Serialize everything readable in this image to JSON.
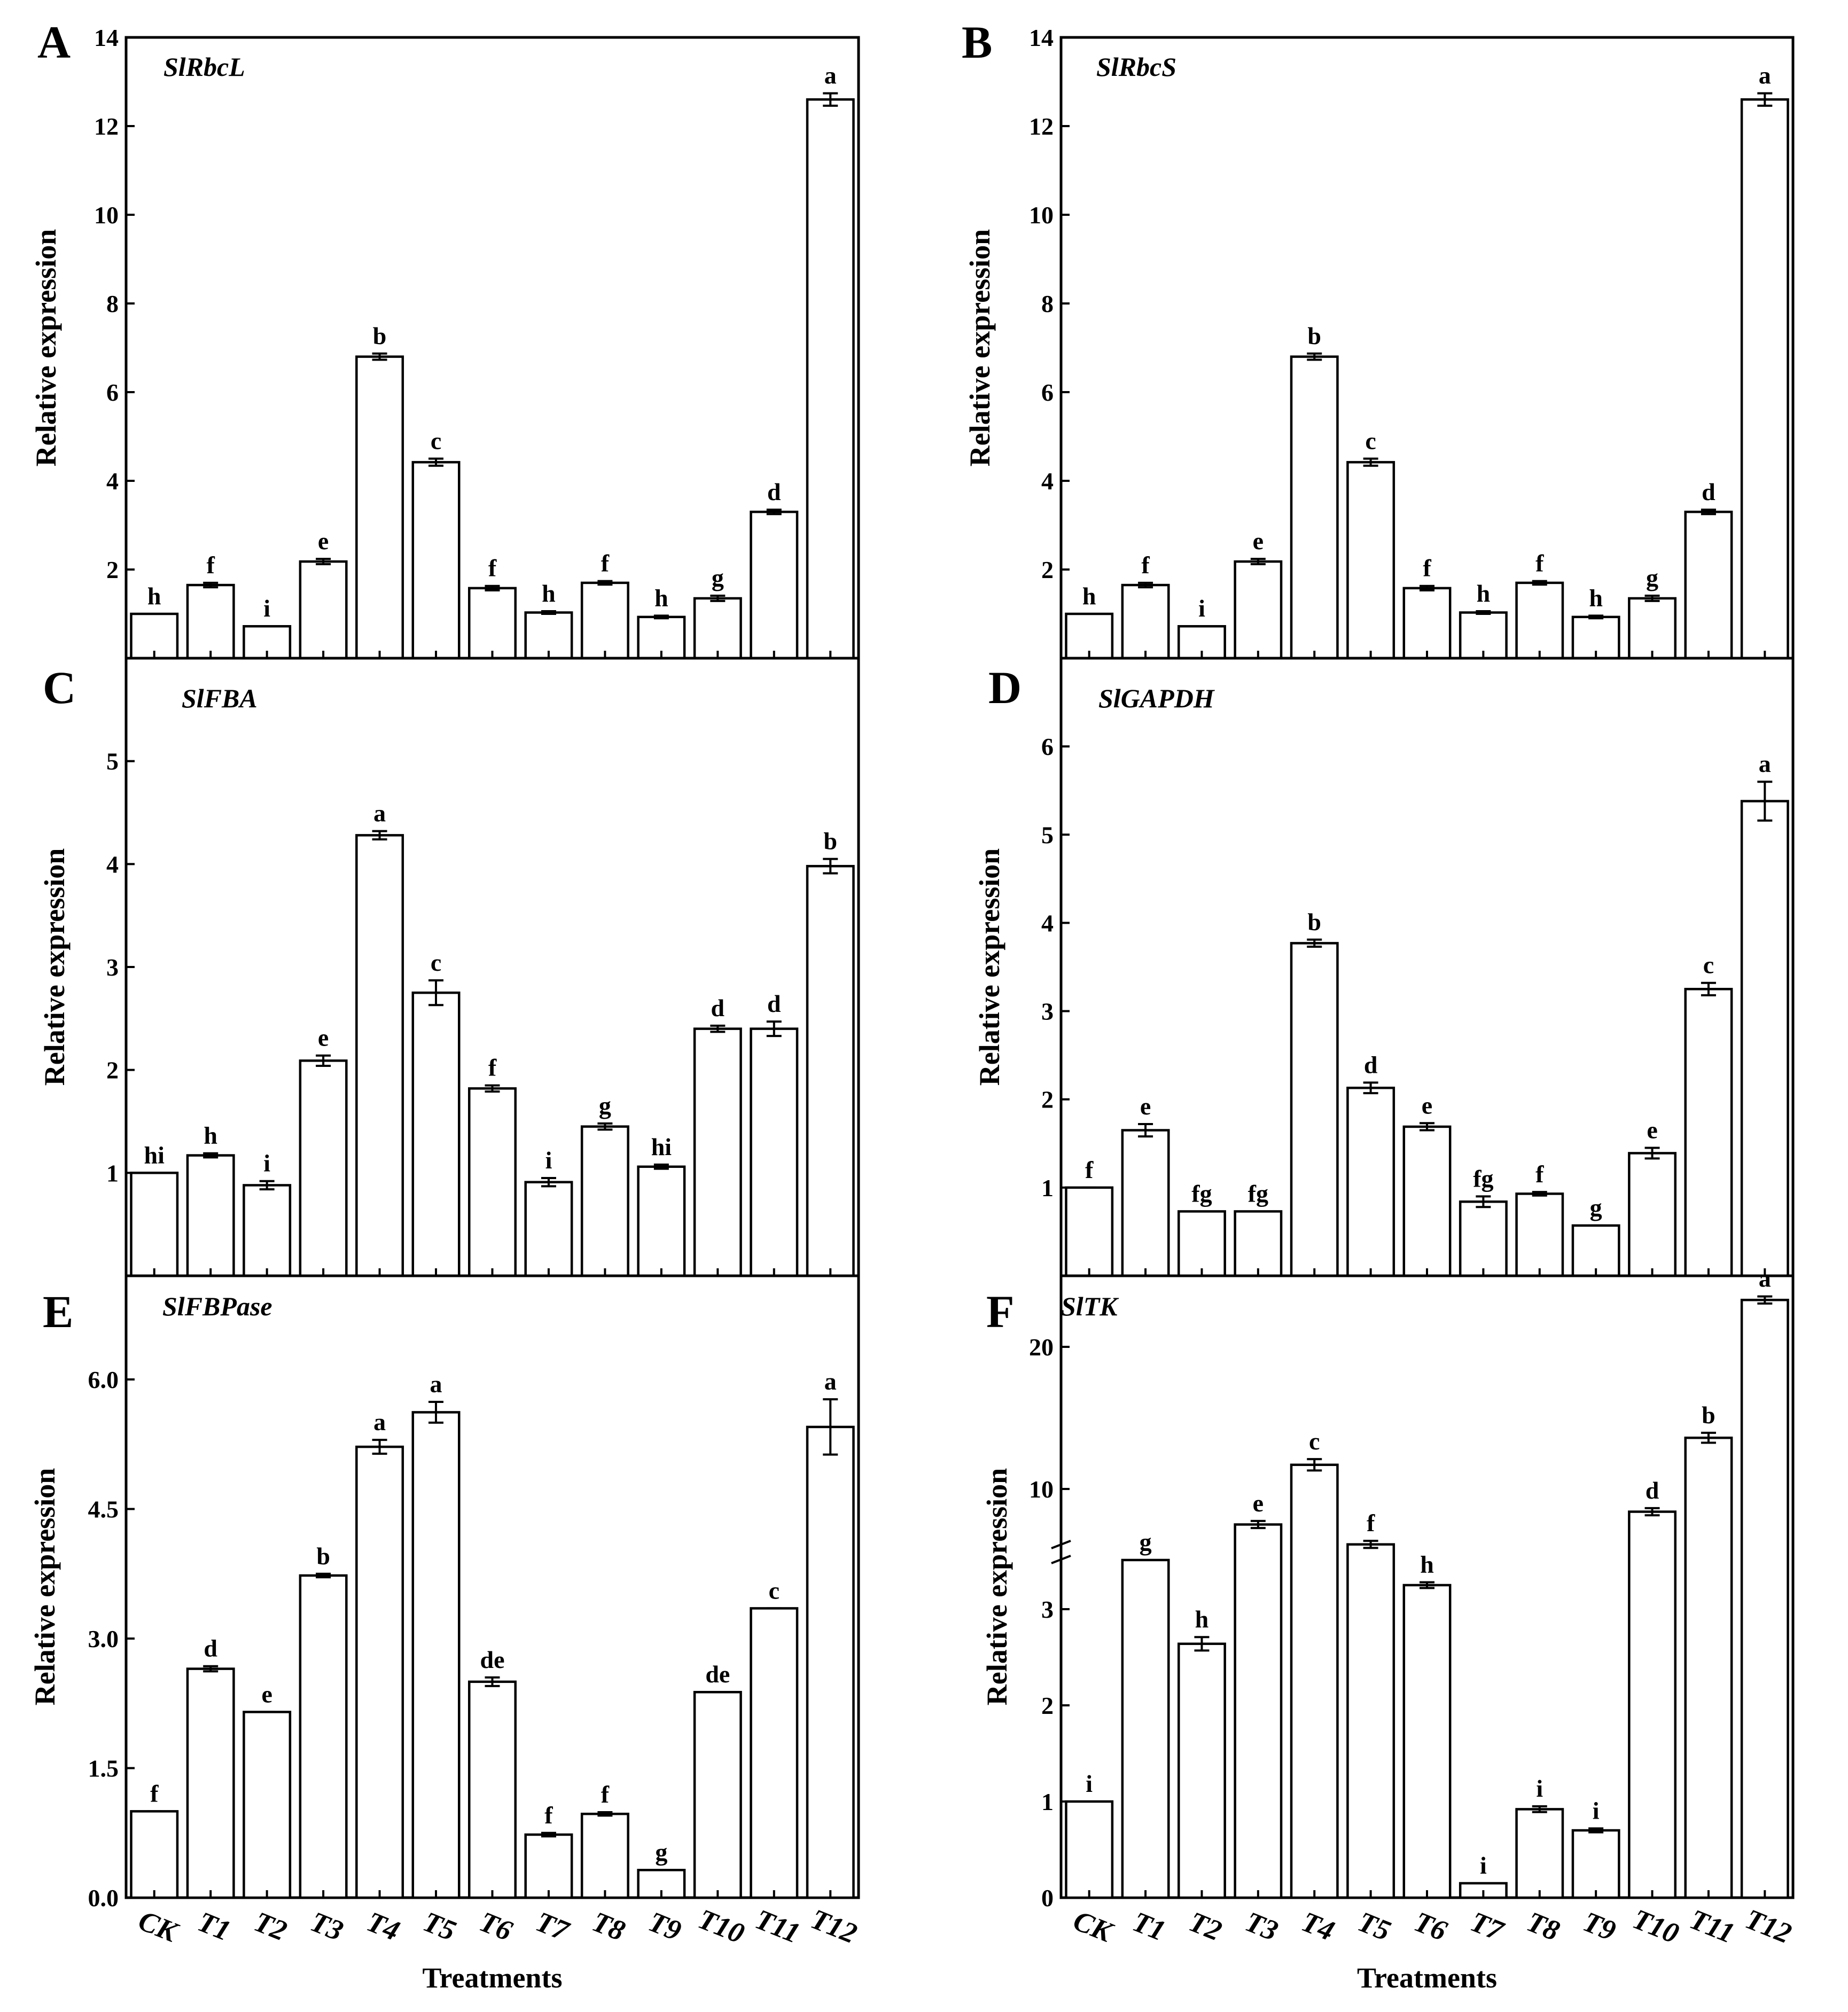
{
  "chart_data": [
    {
      "type": "bar",
      "panel_letter": "A",
      "title": "SlRbcL",
      "ylabel": "Relative expression",
      "xlabel": "",
      "ylim": [
        0,
        14
      ],
      "yticks": [
        "2",
        "4",
        "6",
        "8",
        "10",
        "12",
        "14"
      ],
      "categories": [
        "CK",
        "T1",
        "T2",
        "T3",
        "T4",
        "T5",
        "T6",
        "T7",
        "T8",
        "T9",
        "T10",
        "T11",
        "T12"
      ],
      "values": [
        1.0,
        1.65,
        0.72,
        2.18,
        6.8,
        4.42,
        1.58,
        1.03,
        1.7,
        0.93,
        1.35,
        3.3,
        12.6
      ],
      "errors": [
        0.0,
        0.05,
        0.0,
        0.06,
        0.07,
        0.08,
        0.05,
        0.03,
        0.04,
        0.03,
        0.06,
        0.05,
        0.14
      ],
      "labels": [
        "h",
        "f",
        "i",
        "e",
        "b",
        "c",
        "f",
        "h",
        "f",
        "h",
        "g",
        "d",
        "a"
      ]
    },
    {
      "type": "bar",
      "panel_letter": "B",
      "title": "SlRbcS",
      "ylabel": "Relative expression",
      "xlabel": "",
      "ylim": [
        0,
        14
      ],
      "yticks": [
        "2",
        "4",
        "6",
        "8",
        "10",
        "12",
        "14"
      ],
      "categories": [
        "CK",
        "T1",
        "T2",
        "T3",
        "T4",
        "T5",
        "T6",
        "T7",
        "T8",
        "T9",
        "T10",
        "T11",
        "T12"
      ],
      "values": [
        1.0,
        1.65,
        0.72,
        2.18,
        6.8,
        4.42,
        1.58,
        1.03,
        1.7,
        0.93,
        1.35,
        3.3,
        12.6
      ],
      "errors": [
        0.0,
        0.05,
        0.0,
        0.06,
        0.07,
        0.08,
        0.05,
        0.03,
        0.04,
        0.03,
        0.06,
        0.05,
        0.14
      ],
      "labels": [
        "h",
        "f",
        "i",
        "e",
        "b",
        "c",
        "f",
        "h",
        "f",
        "h",
        "g",
        "d",
        "a"
      ]
    },
    {
      "type": "bar",
      "panel_letter": "C",
      "title": "SlFBA",
      "ylabel": "Relative expression",
      "xlabel": "",
      "ylim": [
        0,
        6
      ],
      "yticks": [
        "1",
        "2",
        "3",
        "4",
        "5"
      ],
      "categories": [
        "CK",
        "T1",
        "T2",
        "T3",
        "T4",
        "T5",
        "T6",
        "T7",
        "T8",
        "T9",
        "T10",
        "T11",
        "T12"
      ],
      "values": [
        1.0,
        1.17,
        0.88,
        2.09,
        4.28,
        2.75,
        1.82,
        0.91,
        1.45,
        1.06,
        2.4,
        2.4,
        3.98
      ],
      "errors": [
        0.0,
        0.02,
        0.04,
        0.05,
        0.04,
        0.12,
        0.03,
        0.04,
        0.03,
        0.02,
        0.03,
        0.07,
        0.07
      ],
      "labels": [
        "hi",
        "h",
        "i",
        "e",
        "a",
        "c",
        "f",
        "i",
        "g",
        "hi",
        "d",
        "d",
        "b"
      ]
    },
    {
      "type": "bar",
      "panel_letter": "D",
      "title": "SlGAPDH",
      "ylabel": "Relative expression",
      "xlabel": "",
      "ylim": [
        0,
        7
      ],
      "yticks": [
        "1",
        "2",
        "3",
        "4",
        "5",
        "6"
      ],
      "categories": [
        "CK",
        "T1",
        "T2",
        "T3",
        "T4",
        "T5",
        "T6",
        "T7",
        "T8",
        "T9",
        "T10",
        "T11",
        "T12"
      ],
      "values": [
        1.0,
        1.65,
        0.73,
        0.73,
        3.77,
        2.13,
        1.69,
        0.84,
        0.93,
        0.57,
        1.39,
        3.25,
        5.38
      ],
      "errors": [
        0.0,
        0.07,
        0.0,
        0.0,
        0.04,
        0.06,
        0.04,
        0.06,
        0.02,
        0.0,
        0.06,
        0.07,
        0.22
      ],
      "labels": [
        "f",
        "e",
        "fg",
        "fg",
        "b",
        "d",
        "e",
        "fg",
        "f",
        "g",
        "e",
        "c",
        "a"
      ]
    },
    {
      "type": "bar",
      "panel_letter": "E",
      "title": "SlFBPase",
      "ylabel": "Relative expression",
      "xlabel": "Treatments",
      "ylim": [
        0,
        7.2
      ],
      "yticks": [
        "0.0",
        "1.5",
        "3.0",
        "4.5",
        "6.0"
      ],
      "categories": [
        "CK",
        "T1",
        "T2",
        "T3",
        "T4",
        "T5",
        "T6",
        "T7",
        "T8",
        "T9",
        "T10",
        "T11",
        "T12"
      ],
      "values": [
        1.0,
        2.65,
        2.15,
        3.73,
        5.22,
        5.62,
        2.5,
        0.73,
        0.97,
        0.32,
        2.38,
        3.35,
        5.45
      ],
      "errors": [
        0.0,
        0.03,
        0.0,
        0.02,
        0.08,
        0.12,
        0.05,
        0.02,
        0.02,
        0.0,
        0.0,
        0.0,
        0.32
      ],
      "labels": [
        "f",
        "d",
        "e",
        "b",
        "a",
        "a",
        "de",
        "f",
        "f",
        "g",
        "de",
        "c",
        "a"
      ]
    },
    {
      "type": "bar",
      "panel_letter": "F",
      "title": "SlTK",
      "ylabel": "Relative expression",
      "xlabel": "Treatments",
      "axis_break": [
        3.6,
        5
      ],
      "ylim_lower": [
        0,
        3.6
      ],
      "ylim_upper": [
        5,
        25
      ],
      "yticks": [
        "0",
        "1",
        "2",
        "3",
        "10",
        "20"
      ],
      "categories": [
        "CK",
        "T1",
        "T2",
        "T3",
        "T4",
        "T5",
        "T6",
        "T7",
        "T8",
        "T9",
        "T10",
        "T11",
        "T12"
      ],
      "values": [
        1.0,
        5.0,
        2.64,
        7.5,
        11.7,
        6.1,
        3.25,
        0.15,
        0.92,
        0.7,
        8.4,
        13.6,
        23.3
      ],
      "errors": [
        0.0,
        0.0,
        0.07,
        0.25,
        0.4,
        0.25,
        0.03,
        0.0,
        0.03,
        0.02,
        0.25,
        0.35,
        0.25
      ],
      "labels": [
        "i",
        "g",
        "h",
        "e",
        "c",
        "f",
        "h",
        "i",
        "i",
        "i",
        "d",
        "b",
        "a"
      ]
    }
  ]
}
